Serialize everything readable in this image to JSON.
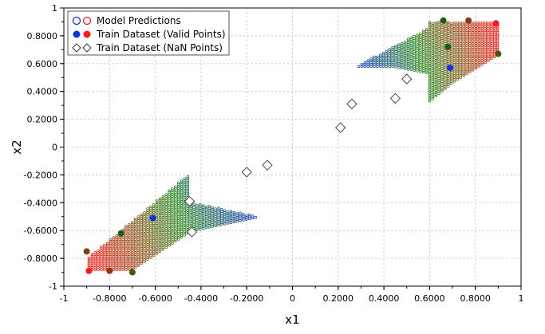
{
  "chart_data": {
    "type": "scatter",
    "title": "",
    "xlabel": "x1",
    "ylabel": "x2",
    "xlim": [
      -1,
      1
    ],
    "ylim": [
      -1,
      1
    ],
    "grid": true,
    "legend_position": "top-left",
    "x_ticks": [
      "-1",
      "-0.8000",
      "-0.6000",
      "-0.4000",
      "-0.2000",
      "0",
      "0.2000",
      "0.4000",
      "0.6000",
      "0.8000",
      "1"
    ],
    "y_ticks": [
      "-1",
      "-0.8000",
      "-0.6000",
      "-0.4000",
      "-0.2000",
      "0",
      "0.2000",
      "0.4000",
      "0.6000",
      "0.8000",
      "1"
    ],
    "legend": [
      {
        "label": "Model Predictions",
        "marker": "open-circles"
      },
      {
        "label": "Train Dataset (Valid Points)",
        "marker": "filled-circles"
      },
      {
        "label": "Train Dataset (NaN Points)",
        "marker": "open-diamonds"
      }
    ],
    "colors": {
      "blue": "#1530e0",
      "green": "#2e8b22",
      "red": "#ff1a1a",
      "dark_green": "#1a5c12",
      "brown": "#8b3a10",
      "olive": "#3d5a10",
      "diamond": "#444444",
      "grid": "#c8c8c8"
    },
    "prediction_regions": [
      {
        "name": "lower-left",
        "x_min": -0.89,
        "x_max": -0.16,
        "y_min": -0.88,
        "y_max": -0.2,
        "diagonal_slope": 1.0
      },
      {
        "name": "upper-right",
        "x_min": 0.29,
        "x_max": 0.9,
        "y_min": 0.33,
        "y_max": 0.9,
        "diagonal_slope": 1.0
      }
    ],
    "valid_points": [
      {
        "x": -0.61,
        "y": -0.51,
        "color": "blue"
      },
      {
        "x": -0.75,
        "y": -0.62,
        "color": "dark_green"
      },
      {
        "x": -0.89,
        "y": -0.89,
        "color": "red"
      },
      {
        "x": -0.9,
        "y": -0.75,
        "color": "brown"
      },
      {
        "x": -0.8,
        "y": -0.89,
        "color": "brown"
      },
      {
        "x": -0.7,
        "y": -0.9,
        "color": "olive"
      },
      {
        "x": 0.66,
        "y": 0.91,
        "color": "dark_green"
      },
      {
        "x": 0.77,
        "y": 0.91,
        "color": "brown"
      },
      {
        "x": 0.89,
        "y": 0.89,
        "color": "red"
      },
      {
        "x": 0.68,
        "y": 0.72,
        "color": "dark_green"
      },
      {
        "x": 0.69,
        "y": 0.57,
        "color": "blue"
      },
      {
        "x": 0.9,
        "y": 0.67,
        "color": "olive"
      }
    ],
    "nan_points": [
      {
        "x": -0.45,
        "y": -0.39
      },
      {
        "x": -0.44,
        "y": -0.61
      },
      {
        "x": -0.2,
        "y": -0.18
      },
      {
        "x": -0.11,
        "y": -0.13
      },
      {
        "x": 0.21,
        "y": 0.14
      },
      {
        "x": 0.26,
        "y": 0.31
      },
      {
        "x": 0.45,
        "y": 0.35
      },
      {
        "x": 0.5,
        "y": 0.49
      }
    ]
  }
}
